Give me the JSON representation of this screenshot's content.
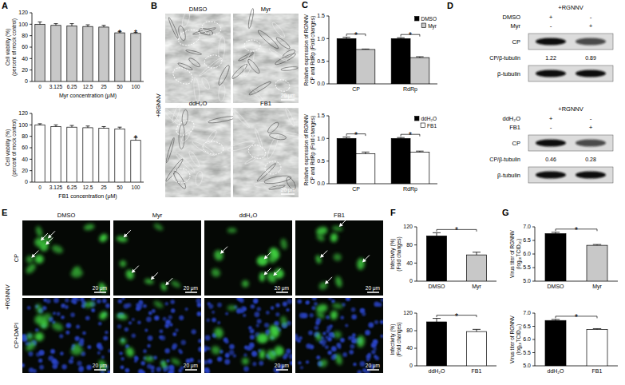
{
  "panel_letters": [
    "A",
    "B",
    "C",
    "D",
    "E",
    "F",
    "G"
  ],
  "chart_data": [
    {
      "type": "bar",
      "ylabel": [
        "Cell viability (%)",
        "(percent of mock control)"
      ],
      "xlabel": "Myr concentration (μM)",
      "categories": [
        "0",
        "3.125",
        "6.25",
        "12.5",
        "25",
        "50",
        "100"
      ],
      "values": [
        100,
        98,
        97,
        96,
        95,
        85,
        84
      ],
      "errors": [
        4,
        3,
        4,
        3,
        3,
        2,
        2
      ],
      "color": "#c8c8c8",
      "ylim": [
        0,
        120
      ],
      "yticks": [
        0,
        20,
        40,
        60,
        80,
        100,
        120
      ],
      "annotations": [
        {
          "text": "*",
          "category": "50"
        },
        {
          "text": "*",
          "category": "100"
        }
      ]
    },
    {
      "type": "bar",
      "ylabel": [
        "Cell viability (%)",
        "(percent of mock control)"
      ],
      "xlabel": "FB1 concentration (μM)",
      "categories": [
        "0",
        "3.125",
        "6.25",
        "12.5",
        "25",
        "50",
        "100"
      ],
      "values": [
        100,
        97,
        96,
        95,
        94,
        93,
        73
      ],
      "errors": [
        2,
        3,
        3,
        3,
        3,
        3,
        5
      ],
      "color": "#ffffff",
      "ylim": [
        0,
        120
      ],
      "yticks": [
        0,
        20,
        40,
        60,
        80,
        100,
        120
      ],
      "annotations": [
        {
          "text": "*",
          "category": "100"
        }
      ]
    },
    {
      "type": "bar",
      "ylabel": [
        "Relative expression of RGNNV",
        "CP and RdRp (Fold changes)"
      ],
      "categories": [
        "CP",
        "RdRp"
      ],
      "series": [
        {
          "name": "DMSO",
          "color": "#000000",
          "values": [
            1.0,
            1.0
          ],
          "errors": [
            0.03,
            0.02
          ]
        },
        {
          "name": "Myr",
          "color": "#c8c8c8",
          "values": [
            0.76,
            0.58
          ],
          "errors": [
            0.01,
            0.02
          ]
        }
      ],
      "ylim": [
        0,
        1.5
      ],
      "yticks": [
        {
          "value": 0,
          "label": "0.0"
        },
        0.5,
        {
          "value": 1,
          "label": "1.0"
        },
        1.5
      ],
      "legend": "top-right",
      "annotations": [
        {
          "text": "*",
          "category": "CP"
        },
        {
          "text": "*",
          "category": "RdRp"
        }
      ]
    },
    {
      "type": "bar",
      "ylabel": [
        "Relative expression of RGNNV",
        "CP and RdRp (Fold changes)"
      ],
      "categories": [
        "CP",
        "RdRp"
      ],
      "series": [
        {
          "name": "ddH₂O",
          "color": "#000000",
          "values": [
            1.0,
            1.0
          ],
          "errors": [
            0.03,
            0.02
          ]
        },
        {
          "name": "FB1",
          "color": "#ffffff",
          "values": [
            0.66,
            0.7
          ],
          "errors": [
            0.04,
            0.02
          ]
        }
      ],
      "ylim": [
        0,
        1.5
      ],
      "yticks": [
        {
          "value": 0,
          "label": "0.0"
        },
        0.5,
        {
          "value": 1,
          "label": "1.0"
        },
        1.5
      ],
      "legend": "top-right",
      "annotations": [
        {
          "text": "*",
          "category": "CP"
        },
        {
          "text": "*",
          "category": "RdRp"
        }
      ]
    },
    {
      "type": "bar",
      "ylabel": [
        "Infectivity (%)",
        "(Fold changes)"
      ],
      "categories": [
        "DMSO",
        "Myr"
      ],
      "values": [
        100,
        58
      ],
      "errors": [
        7,
        6
      ],
      "colors": [
        "#000000",
        "#c8c8c8"
      ],
      "ylim": [
        0,
        120
      ],
      "yticks": [
        0,
        40,
        80,
        120
      ],
      "annotations": [
        {
          "text": "*",
          "from": "DMSO",
          "to": "Myr"
        }
      ]
    },
    {
      "type": "bar",
      "ylabel": [
        "Infectivity (%)",
        "(Fold changes)"
      ],
      "categories": [
        "ddH₂O",
        "FB1"
      ],
      "values": [
        100,
        78
      ],
      "errors": [
        8,
        5
      ],
      "colors": [
        "#000000",
        "#ffffff"
      ],
      "ylim": [
        0,
        120
      ],
      "yticks": [
        0,
        40,
        80,
        120
      ],
      "annotations": [
        {
          "text": "*",
          "from": "ddH₂O",
          "to": "FB1"
        }
      ]
    },
    {
      "type": "bar",
      "ylabel": [
        "Virus titer of RGNNV",
        "(log₁₀TCID₅₀)"
      ],
      "categories": [
        "DMSO",
        "Myr"
      ],
      "values": [
        6.75,
        6.32
      ],
      "errors": [
        0.05,
        0.03
      ],
      "colors": [
        "#000000",
        "#c8c8c8"
      ],
      "ylim": [
        5,
        7
      ],
      "yticks": [
        {
          "value": 5,
          "label": "5.0"
        },
        5.5,
        {
          "value": 6,
          "label": "6.0"
        },
        6.5,
        {
          "value": 7,
          "label": "7.0"
        }
      ],
      "annotations": [
        {
          "text": "*",
          "from": "DMSO",
          "to": "Myr"
        }
      ]
    },
    {
      "type": "bar",
      "ylabel": [
        "Virus titer of RGNNV",
        "(log₁₀TCID₅₀)"
      ],
      "categories": [
        "ddH₂O",
        "FB1"
      ],
      "values": [
        6.72,
        6.38
      ],
      "errors": [
        0.04,
        0.03
      ],
      "colors": [
        "#000000",
        "#ffffff"
      ],
      "ylim": [
        5,
        7
      ],
      "yticks": [
        {
          "value": 5,
          "label": "5.0"
        },
        5.5,
        {
          "value": 6,
          "label": "6.0"
        },
        6.5,
        {
          "value": 7,
          "label": "7.0"
        }
      ],
      "annotations": [
        {
          "text": "*",
          "from": "ddH₂O",
          "to": "FB1"
        }
      ]
    }
  ],
  "micrographs_B": {
    "condition": "+RGNNV",
    "images": [
      "DMSO",
      "Myr",
      "ddH₂O",
      "FB1"
    ],
    "scale_bar": "20 μm"
  },
  "western_blots_D": [
    {
      "condition": "+RGNNV",
      "rows": [
        {
          "label": "DMSO",
          "lanes": [
            "+",
            "-"
          ]
        },
        {
          "label": "Myr",
          "lanes": [
            "-",
            "+"
          ]
        }
      ],
      "target": "CP",
      "ratio_label": "CP/β-tubulin",
      "ratios": [
        1.22,
        0.89
      ],
      "control": "β-tubulin"
    },
    {
      "condition": "+RGNNV",
      "rows": [
        {
          "label": "ddH₂O",
          "lanes": [
            "+",
            "-"
          ]
        },
        {
          "label": "FB1",
          "lanes": [
            "-",
            "+"
          ]
        }
      ],
      "target": "CP",
      "ratio_label": "CP/β-tubulin",
      "ratios": [
        0.46,
        0.28
      ],
      "control": "β-tubulin"
    }
  ],
  "immunofluorescence_E": {
    "condition": "+RGNNV",
    "columns": [
      "DMSO",
      "Myr",
      "ddH₂O",
      "FB1"
    ],
    "rows": [
      "CP",
      "CP+DAPI"
    ],
    "scale_bar": "20 μm"
  }
}
